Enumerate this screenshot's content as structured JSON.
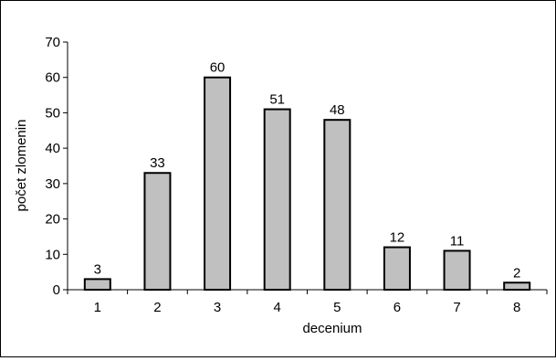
{
  "chart_data": {
    "type": "bar",
    "categories": [
      "1",
      "2",
      "3",
      "4",
      "5",
      "6",
      "7",
      "8"
    ],
    "values": [
      3,
      33,
      60,
      51,
      48,
      12,
      11,
      2
    ],
    "data_labels": [
      "3",
      "33",
      "60",
      "51",
      "48",
      "12",
      "11",
      "2"
    ],
    "yticks": [
      "0",
      "10",
      "20",
      "30",
      "40",
      "50",
      "60",
      "70"
    ],
    "xlabel": "decenium",
    "ylabel": "počet zlomenin",
    "ylim": [
      0,
      70
    ],
    "grid": false,
    "legend": false,
    "bar_color": "#c0c0c0",
    "bar_edge_color": "#000000"
  }
}
